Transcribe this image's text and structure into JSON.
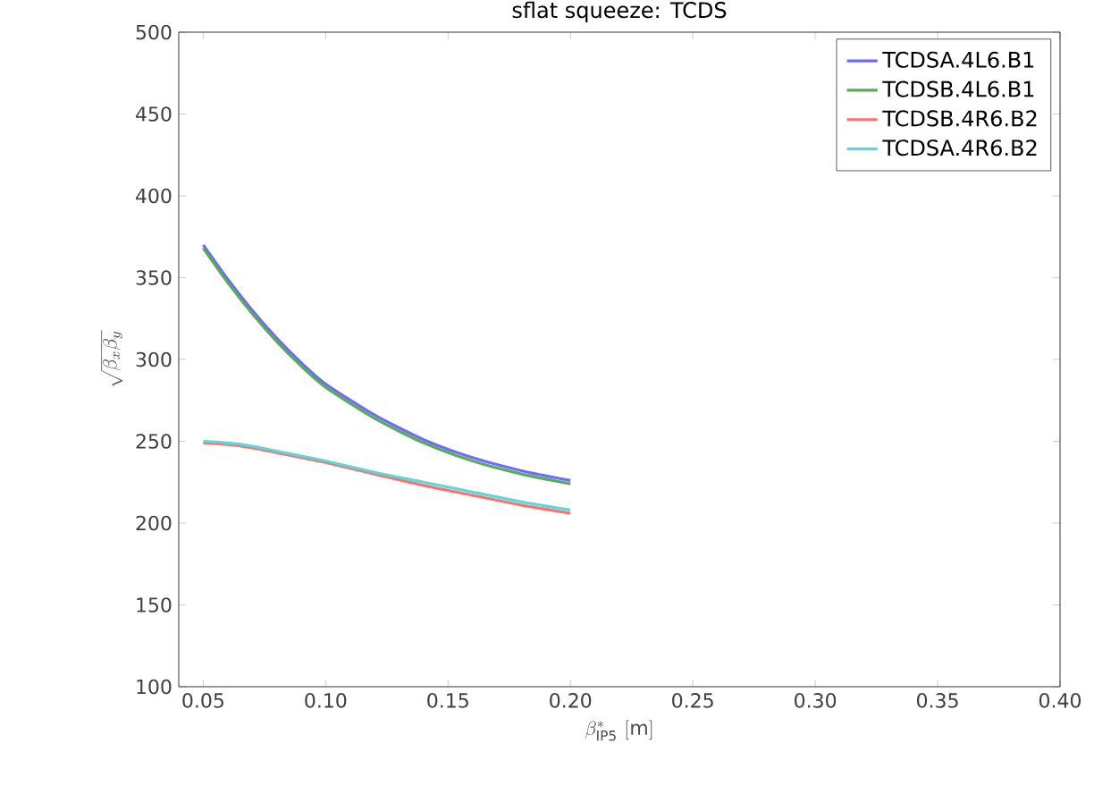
{
  "chart_data": {
    "type": "line",
    "title": "sflat squeeze: TCDS",
    "xlabel": "\\beta^*_{\\mathrm{IP5}}\\ [\\mathrm{m}]",
    "ylabel": "\\sqrt{\\beta_x\\beta_y}",
    "x": [
      0.05,
      0.06,
      0.07,
      0.08,
      0.09,
      0.1,
      0.12,
      0.14,
      0.16,
      0.18,
      0.2
    ],
    "series": [
      {
        "name": "TCDSA.4L6.B1",
        "color": "#6b6bff",
        "values": [
          370,
          349,
          330,
          313,
          298,
          285,
          266,
          251,
          240,
          232,
          226
        ]
      },
      {
        "name": "TCDSB.4L6.B1",
        "color": "#5aaa5a",
        "values": [
          368,
          347,
          328,
          311,
          296,
          283,
          264,
          249,
          238,
          230,
          224
        ]
      },
      {
        "name": "TCDSB.4R6.B2",
        "color": "#ff7070",
        "values": [
          249,
          248,
          246,
          243,
          240,
          237,
          230,
          223,
          217,
          211,
          206
        ]
      },
      {
        "name": "TCDSA.4R6.B2",
        "color": "#5ad8d8",
        "values": [
          250,
          249,
          247,
          244,
          241,
          238,
          231,
          225,
          219,
          213,
          208
        ]
      }
    ],
    "xlim": [
      0.04,
      0.4
    ],
    "ylim": [
      100,
      500
    ],
    "xticks": [
      {
        "value": 0.05,
        "label": "0.05"
      },
      {
        "value": 0.1,
        "label": "0.10"
      },
      {
        "value": 0.15,
        "label": "0.15"
      },
      {
        "value": 0.2,
        "label": "0.20"
      },
      {
        "value": 0.25,
        "label": "0.25"
      },
      {
        "value": 0.3,
        "label": "0.30"
      },
      {
        "value": 0.35,
        "label": "0.35"
      },
      {
        "value": 0.4,
        "label": "0.40"
      }
    ],
    "yticks": [
      100,
      150,
      200,
      250,
      300,
      350,
      400,
      450,
      500
    ],
    "grid": false,
    "legend": "top right",
    "marker": "none",
    "line_style": "solid"
  }
}
